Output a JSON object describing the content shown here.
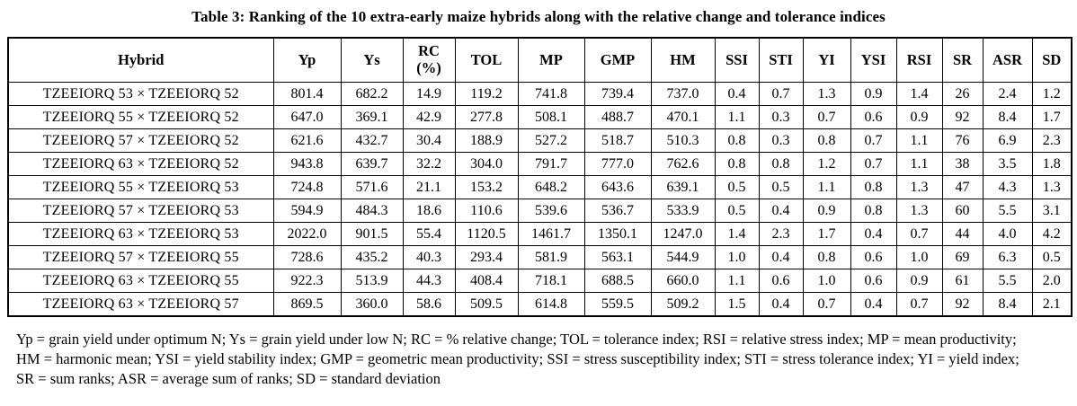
{
  "title": "Table 3: Ranking of the 10 extra-early maize hybrids along with the relative change and tolerance indices",
  "table": {
    "columns": [
      "Hybrid",
      "Yp",
      "Ys",
      "RC\n(%)",
      "TOL",
      "MP",
      "GMP",
      "HM",
      "SSI",
      "STI",
      "YI",
      "YSI",
      "RSI",
      "SR",
      "ASR",
      "SD"
    ],
    "rows": [
      [
        "TZEEIORQ 53 × TZEEIORQ 52",
        "801.4",
        "682.2",
        "14.9",
        "119.2",
        "741.8",
        "739.4",
        "737.0",
        "0.4",
        "0.7",
        "1.3",
        "0.9",
        "1.4",
        "26",
        "2.4",
        "1.2"
      ],
      [
        "TZEEIORQ 55 × TZEEIORQ 52",
        "647.0",
        "369.1",
        "42.9",
        "277.8",
        "508.1",
        "488.7",
        "470.1",
        "1.1",
        "0.3",
        "0.7",
        "0.6",
        "0.9",
        "92",
        "8.4",
        "1.7"
      ],
      [
        "TZEEIORQ 57 × TZEEIORQ 52",
        "621.6",
        "432.7",
        "30.4",
        "188.9",
        "527.2",
        "518.7",
        "510.3",
        "0.8",
        "0.3",
        "0.8",
        "0.7",
        "1.1",
        "76",
        "6.9",
        "2.3"
      ],
      [
        "TZEEIORQ 63 × TZEEIORQ 52",
        "943.8",
        "639.7",
        "32.2",
        "304.0",
        "791.7",
        "777.0",
        "762.6",
        "0.8",
        "0.8",
        "1.2",
        "0.7",
        "1.1",
        "38",
        "3.5",
        "1.8"
      ],
      [
        "TZEEIORQ 55 × TZEEIORQ 53",
        "724.8",
        "571.6",
        "21.1",
        "153.2",
        "648.2",
        "643.6",
        "639.1",
        "0.5",
        "0.5",
        "1.1",
        "0.8",
        "1.3",
        "47",
        "4.3",
        "1.3"
      ],
      [
        "TZEEIORQ 57 × TZEEIORQ 53",
        "594.9",
        "484.3",
        "18.6",
        "110.6",
        "539.6",
        "536.7",
        "533.9",
        "0.5",
        "0.4",
        "0.9",
        "0.8",
        "1.3",
        "60",
        "5.5",
        "3.1"
      ],
      [
        "TZEEIORQ 63 × TZEEIORQ 53",
        "2022.0",
        "901.5",
        "55.4",
        "1120.5",
        "1461.7",
        "1350.1",
        "1247.0",
        "1.4",
        "2.3",
        "1.7",
        "0.4",
        "0.7",
        "44",
        "4.0",
        "4.2"
      ],
      [
        "TZEEIORQ 57 × TZEEIORQ 55",
        "728.6",
        "435.2",
        "40.3",
        "293.4",
        "581.9",
        "563.1",
        "544.9",
        "1.0",
        "0.4",
        "0.8",
        "0.6",
        "1.0",
        "69",
        "6.3",
        "0.5"
      ],
      [
        "TZEEIORQ 63 × TZEEIORQ 55",
        "922.3",
        "513.9",
        "44.3",
        "408.4",
        "718.1",
        "688.5",
        "660.0",
        "1.1",
        "0.6",
        "1.0",
        "0.6",
        "0.9",
        "61",
        "5.5",
        "2.0"
      ],
      [
        "TZEEIORQ 63 × TZEEIORQ 57",
        "869.5",
        "360.0",
        "58.6",
        "509.5",
        "614.8",
        "559.5",
        "509.2",
        "1.5",
        "0.4",
        "0.7",
        "0.4",
        "0.7",
        "92",
        "8.4",
        "2.1"
      ]
    ]
  },
  "footnote": {
    "lines": [
      "Yp = grain yield under optimum N; Ys = grain yield under low N; RC =  % relative change; TOL = tolerance index; RSI = relative stress index; MP = mean productivity;",
      "HM = harmonic mean; YSI = yield stability index; GMP = geometric mean productivity; SSI = stress susceptibility index; STI = stress tolerance index; YI = yield index;",
      "SR = sum ranks; ASR = average sum of ranks; SD = standard deviation"
    ]
  }
}
